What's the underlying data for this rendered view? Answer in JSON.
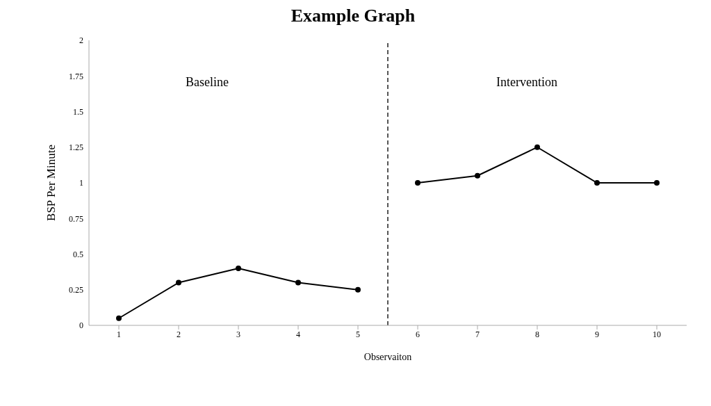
{
  "chart_data": {
    "type": "line",
    "title": "Example Graph",
    "xlabel": "Observaiton",
    "ylabel": "BSP Per Minute",
    "annotations": [
      "Baseline",
      "Intervention"
    ],
    "series": [
      {
        "color": "#000000",
        "x": [
          1,
          2,
          3,
          4,
          5
        ],
        "values": [
          0.05,
          0.3,
          0.4,
          0.3,
          0.25
        ]
      },
      {
        "color": "#000000",
        "x": [
          6,
          7,
          8,
          9,
          10
        ],
        "values": [
          1,
          1.05,
          1.25,
          1,
          1
        ]
      }
    ],
    "xlim": [
      0.5,
      10.5
    ],
    "xticks": [
      1,
      2,
      3,
      4,
      5,
      6,
      7,
      8,
      9,
      10
    ],
    "ylim": [
      0,
      2
    ],
    "yticks": [
      0,
      0.25,
      0.5,
      0.75,
      1,
      1.25,
      1.5,
      1.75,
      2
    ],
    "ref_lines": [
      {
        "axis": "x",
        "value": 5.5,
        "color": "#555555",
        "line_style": "dashed"
      }
    ],
    "grid": false,
    "marker": "circle",
    "line_style": "solid"
  }
}
